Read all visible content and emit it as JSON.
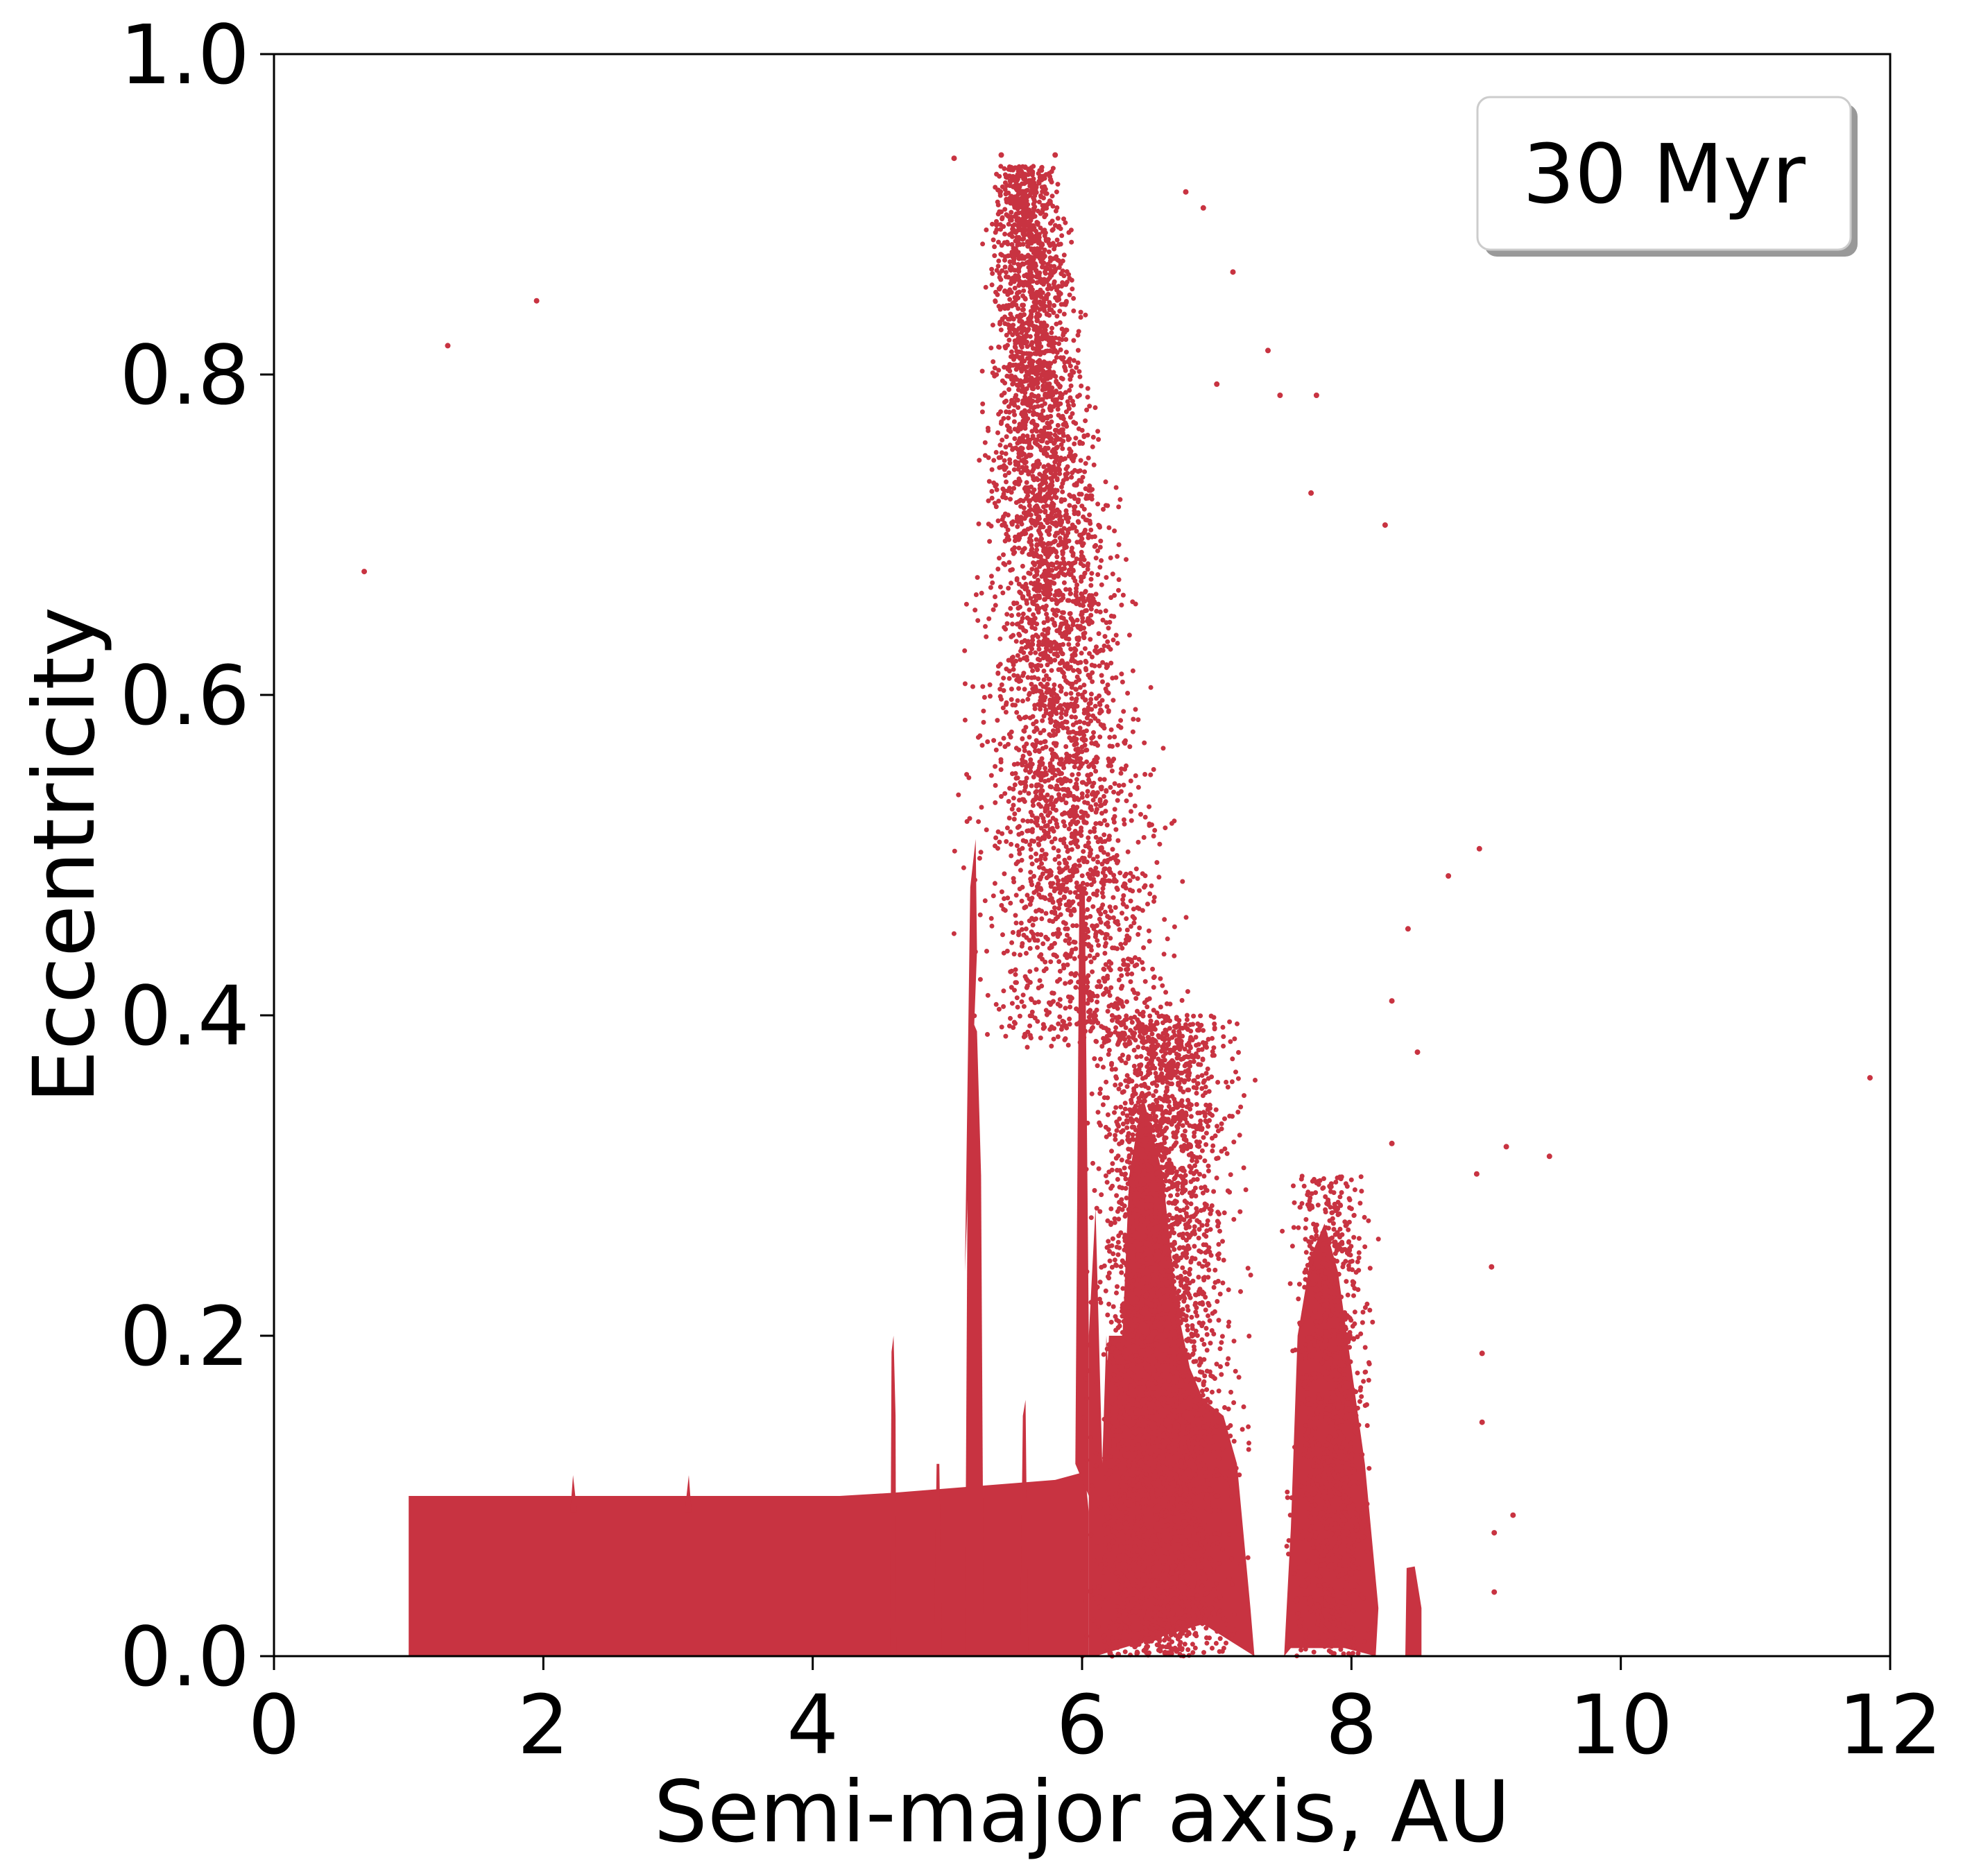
{
  "chart_data": {
    "type": "scatter",
    "title": "",
    "xlabel": "Semi-major axis, AU",
    "ylabel": "Eccentricity",
    "xlim": [
      0,
      12
    ],
    "ylim": [
      0,
      1.0
    ],
    "xticks": [
      0,
      2,
      4,
      6,
      8,
      10,
      12
    ],
    "xtick_labels": [
      "0",
      "2",
      "4",
      "6",
      "8",
      "10",
      "12"
    ],
    "yticks": [
      0.0,
      0.2,
      0.4,
      0.6,
      0.8,
      1.0
    ],
    "ytick_labels": [
      "0.0",
      "0.2",
      "0.4",
      "0.6",
      "0.8",
      "1.0"
    ],
    "grid": false,
    "legend": {
      "text": "30 Myr",
      "placement": "top-right"
    },
    "marker_color": "#c83341",
    "series": [
      {
        "values_note_omitted": true,
        "points": [
          [
            0.67,
            0.677
          ],
          [
            1.29,
            0.818
          ],
          [
            1.95,
            0.846
          ],
          [
            11.85,
            0.361
          ],
          [
            5.05,
            0.935
          ],
          [
            5.4,
            0.937
          ],
          [
            5.8,
            0.937
          ],
          [
            6.77,
            0.914
          ],
          [
            6.9,
            0.904
          ],
          [
            7.12,
            0.864
          ],
          [
            7.38,
            0.815
          ],
          [
            7.47,
            0.787
          ],
          [
            7.74,
            0.787
          ],
          [
            7.0,
            0.794
          ],
          [
            8.25,
            0.706
          ],
          [
            7.7,
            0.726
          ],
          [
            8.95,
            0.504
          ],
          [
            8.72,
            0.487
          ],
          [
            9.15,
            0.318
          ],
          [
            9.47,
            0.312
          ],
          [
            8.93,
            0.301
          ],
          [
            9.04,
            0.243
          ],
          [
            8.97,
            0.189
          ],
          [
            9.06,
            0.077
          ],
          [
            9.2,
            0.088
          ],
          [
            9.06,
            0.04
          ],
          [
            8.97,
            0.146
          ],
          [
            8.3,
            0.409
          ],
          [
            8.42,
            0.454
          ],
          [
            8.49,
            0.377
          ],
          [
            8.3,
            0.32
          ]
        ]
      }
    ],
    "density_regions": [
      {
        "a_range": [
          1.0,
          6.05
        ],
        "e_range": [
          0.0,
          0.1
        ],
        "kind": "dense-band"
      },
      {
        "a_range": [
          5.1,
          5.28
        ],
        "e_range": [
          0.0,
          0.4
        ],
        "kind": "spike"
      },
      {
        "a_range": [
          4.57,
          4.62
        ],
        "e_range": [
          0.0,
          0.2
        ],
        "kind": "spike"
      },
      {
        "a_range": [
          5.55,
          5.6
        ],
        "e_range": [
          0.0,
          0.16
        ],
        "kind": "spike"
      },
      {
        "a_range": [
          6.05,
          7.25
        ],
        "e_range": [
          0.0,
          0.38
        ],
        "kind": "cluster"
      },
      {
        "a_range": [
          7.5,
          8.2
        ],
        "e_range": [
          0.0,
          0.28
        ],
        "kind": "cluster"
      },
      {
        "a_range": [
          8.4,
          8.52
        ],
        "e_range": [
          0.0,
          0.06
        ],
        "kind": "cluster"
      },
      {
        "a_range": [
          5.0,
          7.8
        ],
        "e_range": [
          0.38,
          0.93
        ],
        "kind": "scattered-plume"
      }
    ]
  }
}
